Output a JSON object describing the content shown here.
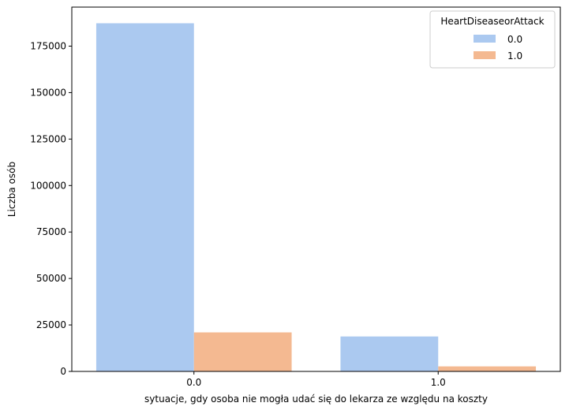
{
  "chart_data": {
    "type": "bar",
    "categories": [
      "0.0",
      "1.0"
    ],
    "series": [
      {
        "name": "0.0",
        "values": [
          187300,
          18800
        ],
        "color": "#abc9f0"
      },
      {
        "name": "1.0",
        "values": [
          21000,
          2700
        ],
        "color": "#f4b991"
      }
    ],
    "xlabel": "sytuacje, gdy osoba nie mogła udać się do lekarza ze względu na koszty",
    "ylabel": "Liczba osób",
    "ylim": [
      0,
      196000
    ],
    "yticks": [
      0,
      25000,
      50000,
      75000,
      100000,
      125000,
      150000,
      175000
    ],
    "grid": false,
    "legend": {
      "title": "HeartDiseaseorAttack",
      "placement": "top-right"
    }
  }
}
